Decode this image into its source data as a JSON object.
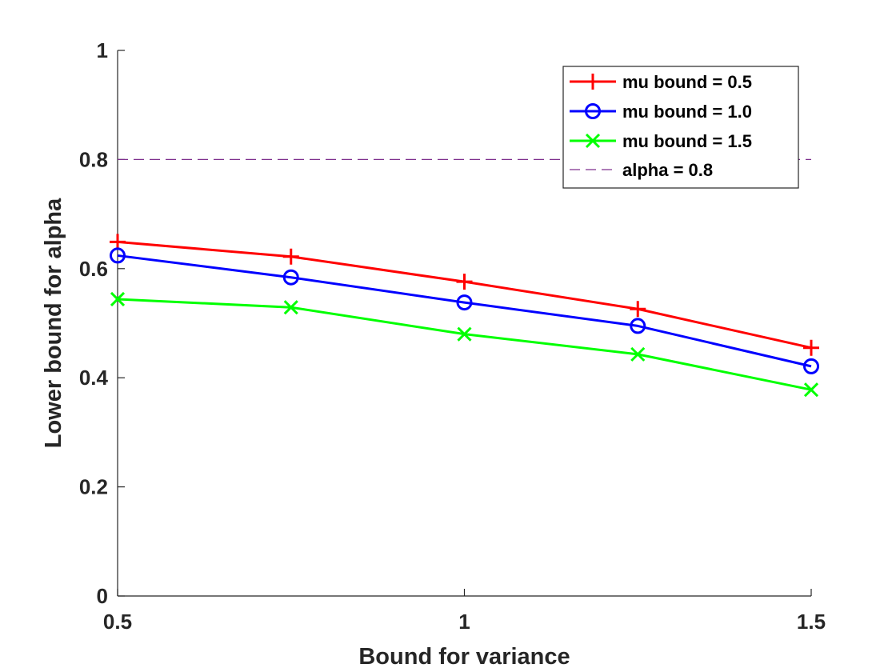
{
  "chart_data": {
    "type": "line",
    "title": "",
    "xlabel": "Bound for variance",
    "ylabel": "Lower bound for alpha",
    "xlim": [
      0.5,
      1.5
    ],
    "ylim": [
      0,
      1
    ],
    "xticks": [
      0.5,
      1,
      1.5
    ],
    "xtick_labels": [
      "0.5",
      "1",
      "1.5"
    ],
    "yticks": [
      0,
      0.2,
      0.4,
      0.6,
      0.8,
      1
    ],
    "ytick_labels": [
      "0",
      "0.2",
      "0.4",
      "0.6",
      "0.8",
      "1"
    ],
    "grid": false,
    "legend_position": "top-right",
    "x": [
      0.5,
      0.75,
      1.0,
      1.25,
      1.5
    ],
    "series": [
      {
        "name": "mu bound = 0.5",
        "values": [
          0.649,
          0.622,
          0.576,
          0.526,
          0.455
        ],
        "color": "#ff0000",
        "marker": "plus"
      },
      {
        "name": "mu bound = 1.0",
        "values": [
          0.624,
          0.584,
          0.538,
          0.495,
          0.421
        ],
        "color": "#0000ff",
        "marker": "circle"
      },
      {
        "name": "mu bound = 1.5",
        "values": [
          0.544,
          0.529,
          0.48,
          0.443,
          0.378
        ],
        "color": "#00ff00",
        "marker": "x"
      }
    ],
    "reference_line": {
      "name": "alpha = 0.8",
      "y": 0.8,
      "color": "#7e2f8e",
      "style": "dashed"
    }
  }
}
